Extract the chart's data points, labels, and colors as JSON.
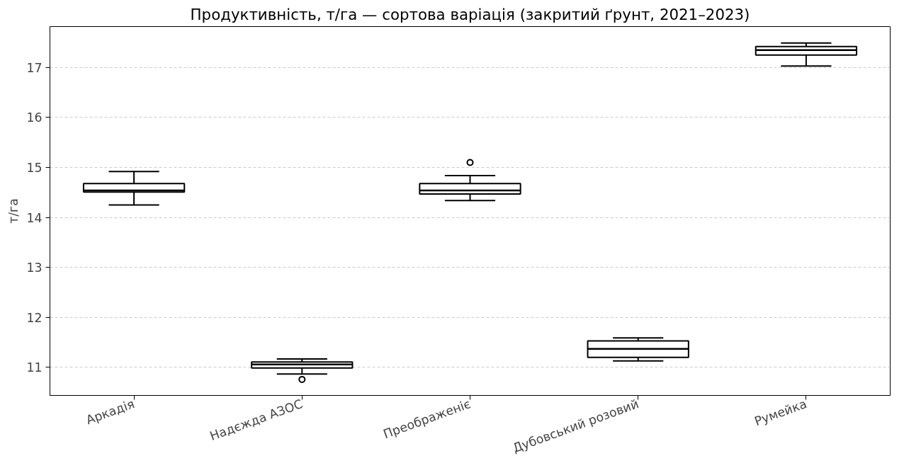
{
  "chart_data": {
    "type": "box",
    "title": "Продуктивність, т/га — сортова варіація (закритий ґрунт, 2021–2023)",
    "ylabel": "т/га",
    "categories": [
      "Аркадія",
      "Надєжда АЗОС",
      "Преображеніє",
      "Дубовський розовий",
      "Румейка"
    ],
    "color": "#000000",
    "boxes": [
      {
        "low": 14.25,
        "q1": 14.51,
        "median": 14.54,
        "q3": 14.68,
        "high": 14.92
      },
      {
        "low": 10.87,
        "q1": 10.99,
        "median": 11.06,
        "q3": 11.11,
        "high": 11.17,
        "outliers": [
          10.76
        ]
      },
      {
        "low": 14.34,
        "q1": 14.47,
        "median": 14.54,
        "q3": 14.68,
        "high": 14.84,
        "outliers": [
          15.1
        ]
      },
      {
        "low": 11.13,
        "q1": 11.2,
        "median": 11.37,
        "q3": 11.53,
        "high": 11.59
      },
      {
        "low": 17.03,
        "q1": 17.25,
        "median": 17.35,
        "q3": 17.42,
        "high": 17.49
      }
    ],
    "ylim": [
      10.44,
      17.82
    ],
    "yticks": [
      11,
      12,
      13,
      14,
      15,
      16,
      17
    ],
    "grid": "y"
  }
}
